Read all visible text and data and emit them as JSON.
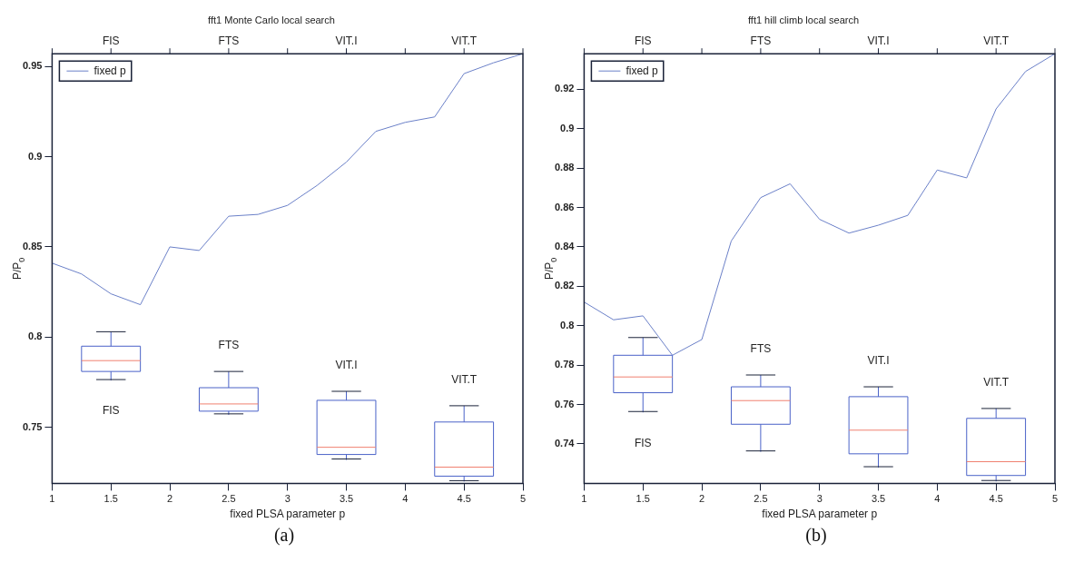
{
  "chart_data": [
    {
      "type": "line",
      "title": "fft1 Monte Carlo local search",
      "xlabel": "fixed PLSA parameter p",
      "ylabel": "P/P$_{0}$",
      "xlim": [
        1,
        5
      ],
      "xticks": [
        1,
        1.5,
        2,
        2.5,
        3,
        3.5,
        4,
        4.5,
        5
      ],
      "ylim": [
        0.719,
        0.957
      ],
      "yticks": [
        0.75,
        0.8,
        0.85,
        0.9,
        0.95
      ],
      "legend": "top left",
      "marker": "none",
      "line_style": "solid",
      "series": [
        {
          "name": "fixed p",
          "type": "line",
          "color": "#6b80c8",
          "x": [
            1,
            1.25,
            1.5,
            1.75,
            2,
            2.25,
            2.5,
            2.75,
            3,
            3.25,
            3.5,
            3.75,
            4,
            4.25,
            4.5,
            4.75,
            5
          ],
          "values": [
            0.841,
            0.835,
            0.824,
            0.818,
            0.85,
            0.848,
            0.867,
            0.868,
            0.873,
            0.884,
            0.897,
            0.914,
            0.919,
            0.922,
            0.946,
            0.952,
            0.957
          ]
        },
        {
          "type": "box",
          "color": "#4a62c8",
          "x": [
            1.5,
            2.5,
            3.5,
            4.5
          ],
          "boxes": [
            {
              "low": 0.776,
              "q1": 0.781,
              "median": 0.787,
              "q3": 0.795,
              "high": 0.803
            },
            {
              "low": 0.757,
              "q1": 0.759,
              "median": 0.763,
              "q3": 0.772,
              "high": 0.781
            },
            {
              "low": 0.732,
              "q1": 0.735,
              "median": 0.739,
              "q3": 0.765,
              "high": 0.77
            },
            {
              "low": 0.72,
              "q1": 0.723,
              "median": 0.728,
              "q3": 0.753,
              "high": 0.762
            }
          ]
        }
      ],
      "annotations": [
        "FIS",
        "FTS",
        "VIT.I",
        "VIT.T",
        "FIS",
        "FTS",
        "VIT.I",
        "VIT.T",
        "(a)"
      ]
    },
    {
      "type": "line",
      "title": "fft1 hill climb local search",
      "xlabel": "fixed PLSA parameter p",
      "ylabel": "P/P$_{0}$",
      "xlim": [
        1,
        5
      ],
      "xticks": [
        1,
        1.5,
        2,
        2.5,
        3,
        3.5,
        4,
        4.5,
        5
      ],
      "ylim": [
        0.72,
        0.938
      ],
      "yticks": [
        0.74,
        0.76,
        0.78,
        0.8,
        0.82,
        0.84,
        0.86,
        0.88,
        0.9,
        0.92
      ],
      "legend": "top left",
      "marker": "none",
      "line_style": "solid",
      "series": [
        {
          "name": "fixed p",
          "type": "line",
          "color": "#6b80c8",
          "x": [
            1,
            1.25,
            1.5,
            1.75,
            2,
            2.25,
            2.5,
            2.75,
            3,
            3.25,
            3.5,
            3.75,
            4,
            4.25,
            4.5,
            4.75,
            5
          ],
          "values": [
            0.812,
            0.803,
            0.805,
            0.785,
            0.793,
            0.843,
            0.865,
            0.872,
            0.854,
            0.847,
            0.851,
            0.856,
            0.879,
            0.875,
            0.91,
            0.929,
            0.938
          ]
        },
        {
          "type": "box",
          "color": "#4a62c8",
          "x": [
            1.5,
            2.5,
            3.5,
            4.5
          ],
          "boxes": [
            {
              "low": 0.756,
              "q1": 0.766,
              "median": 0.774,
              "q3": 0.785,
              "high": 0.794
            },
            {
              "low": 0.736,
              "q1": 0.75,
              "median": 0.762,
              "q3": 0.769,
              "high": 0.775
            },
            {
              "low": 0.728,
              "q1": 0.735,
              "median": 0.747,
              "q3": 0.764,
              "high": 0.769
            },
            {
              "low": 0.721,
              "q1": 0.724,
              "median": 0.731,
              "q3": 0.753,
              "high": 0.758
            }
          ]
        }
      ],
      "annotations": [
        "FIS",
        "FTS",
        "VIT.I",
        "VIT.T",
        "FIS",
        "FTS",
        "VIT.I",
        "VIT.T",
        "(b)"
      ]
    }
  ]
}
